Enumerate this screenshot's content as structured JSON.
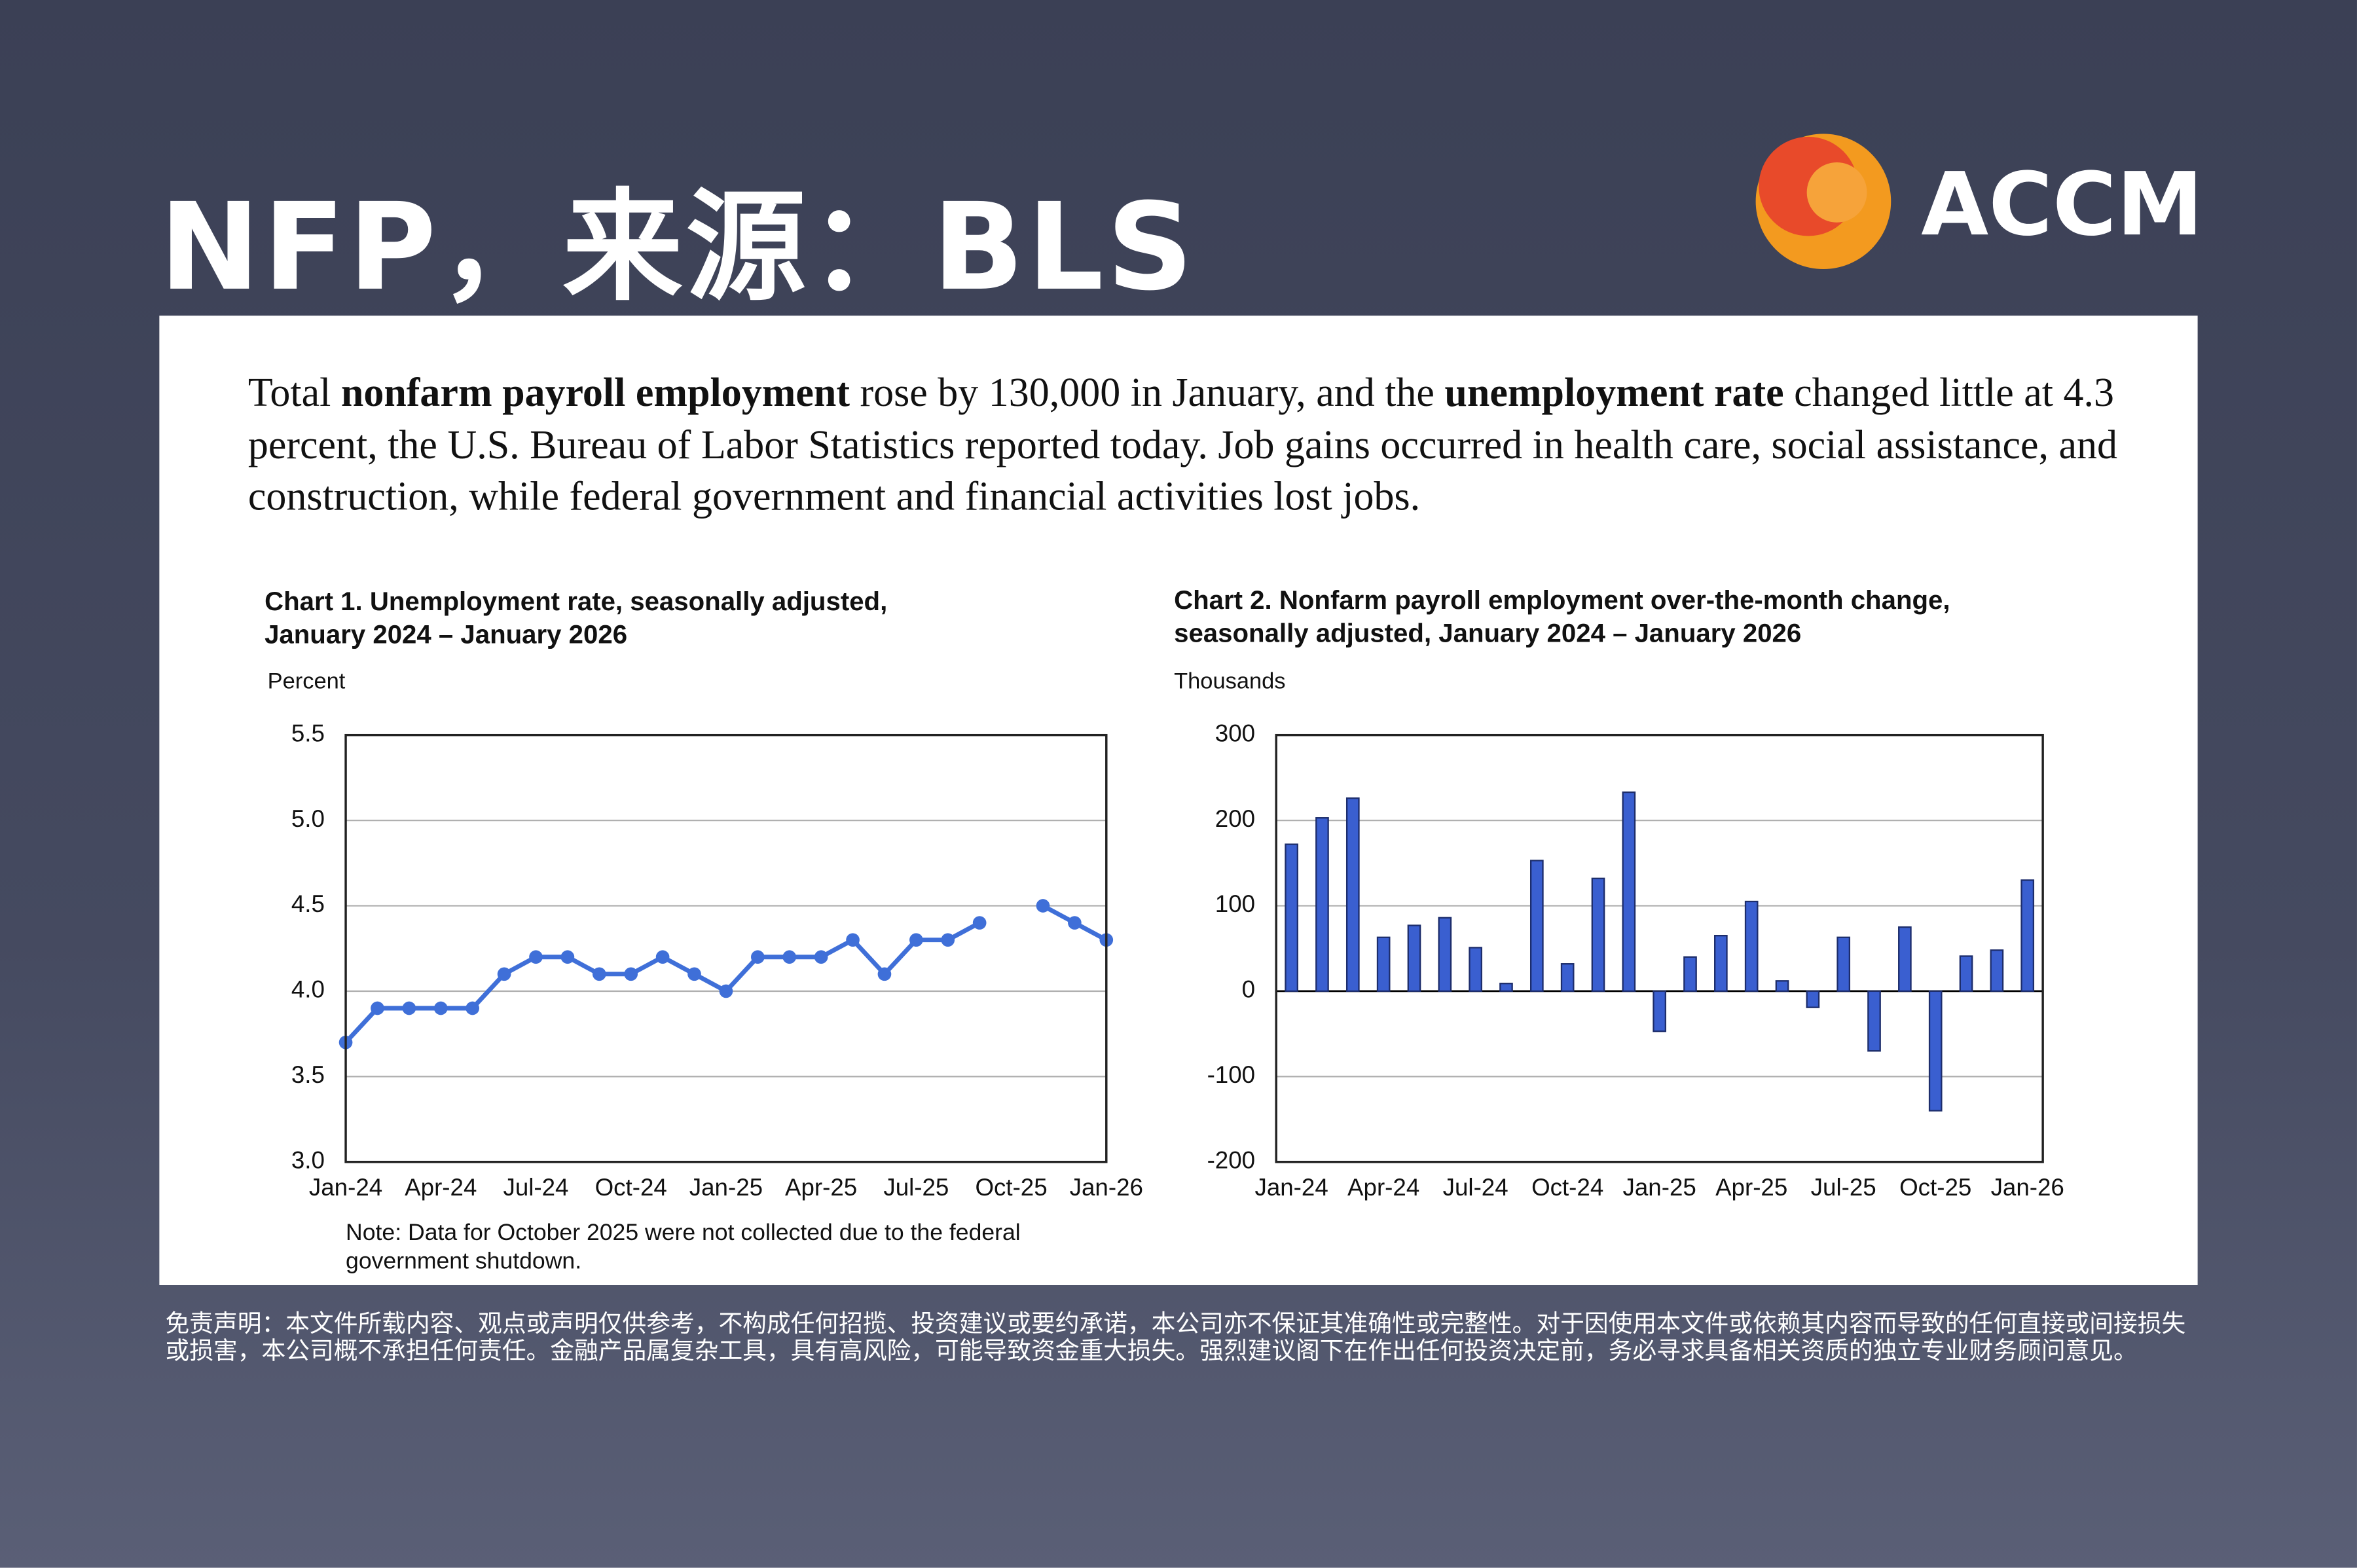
{
  "header": {
    "title": "NFP，来源：BLS",
    "logo": "ACCM"
  },
  "paragraph": [
    "Total",
    "nonfarm payroll employment",
    "rose by 130,000 in January, and the",
    "unemployment rate",
    "changed little at 4.3 percent, the U.S. Bureau of Labor Statistics reported today. Job gains occurred in health care, social assistance, and construction, while federal government and financial activities lost jobs."
  ],
  "chart_data": [
    {
      "type": "line",
      "title": "Chart 1. Unemployment rate, seasonally adjusted, January 2024 – January 2026",
      "y_label": "Percent",
      "categories": [
        "Jan-24",
        null,
        null,
        "Apr-24",
        null,
        null,
        "Jul-24",
        null,
        null,
        "Oct-24",
        null,
        null,
        "Jan-25",
        null,
        null,
        "Apr-25",
        null,
        null,
        "Jul-25",
        null,
        null,
        "Oct-25",
        null,
        null,
        "Jan-26"
      ],
      "values": [
        3.7,
        3.9,
        3.9,
        3.9,
        3.9,
        4.1,
        4.2,
        4.2,
        4.1,
        4.1,
        4.2,
        4.1,
        4.0,
        4.2,
        4.2,
        4.2,
        4.3,
        4.1,
        4.3,
        4.3,
        4.4,
        null,
        4.5,
        4.4,
        4.3
      ],
      "color": "#3f6fd8",
      "ylim": [
        3.0,
        5.5
      ],
      "yticks": [
        {
          "value": 3,
          "label": "3.0"
        },
        3.5,
        {
          "value": 4,
          "label": "4.0"
        },
        4.5,
        {
          "value": 5,
          "label": "5.0"
        },
        5.5
      ],
      "grid": true,
      "note": "Note: Data for October 2025 were not collected due to the federal government shutdown."
    },
    {
      "type": "bar",
      "title": "Chart 2. Nonfarm payroll employment over-the-month change, seasonally adjusted, January 2024 – January 2026",
      "y_label": "Thousands",
      "categories": [
        "Jan-24",
        null,
        null,
        "Apr-24",
        null,
        null,
        "Jul-24",
        null,
        null,
        "Oct-24",
        null,
        null,
        "Jan-25",
        null,
        null,
        "Apr-25",
        null,
        null,
        "Jul-25",
        null,
        null,
        "Oct-25",
        null,
        null,
        "Jan-26"
      ],
      "values": [
        172,
        203,
        226,
        63,
        77,
        86,
        51,
        9,
        153,
        32,
        132,
        233,
        -47,
        40,
        65,
        105,
        12,
        -19,
        63,
        -70,
        75,
        -140,
        41,
        48,
        130
      ],
      "color": "#3a5fd0",
      "ylim": [
        -200,
        300
      ],
      "yticks": [
        -200,
        -100,
        0,
        100,
        200,
        300
      ],
      "grid": true
    }
  ],
  "disclaimer": "免责声明：本文件所载内容、观点或声明仅供参考，不构成任何招揽、投资建议或要约承诺，本公司亦不保证其准确性或完整性。对于因使用本文件或依赖其内容而导致的任何直接或间接损失或损害，本公司概不承担任何责任。金融产品属复杂工具，具有高风险，可能导致资金重大损失。强烈建议阁下在作出任何投资决定前，务必寻求具备相关资质的独立专业财务顾问意见。"
}
